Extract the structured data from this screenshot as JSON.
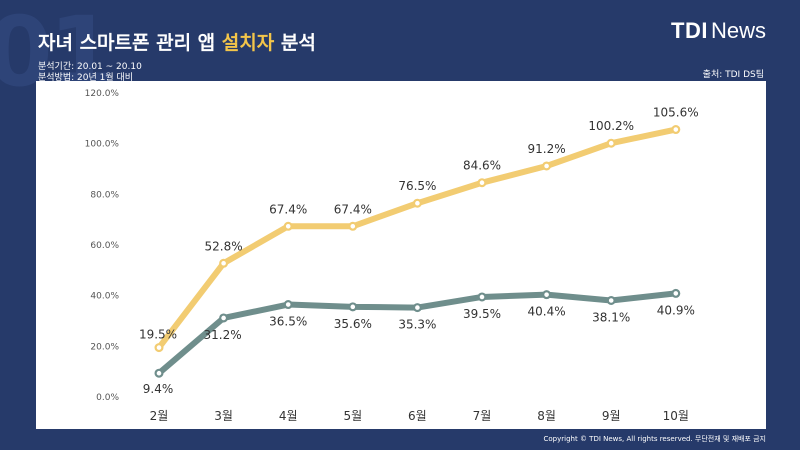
{
  "watermark": "01",
  "header": {
    "title_pre": "자녀 스마트폰 관리 앱 ",
    "title_highlight": "설치자",
    "title_post": " 분석",
    "period": "분석기간: 20.01 ~ 20.10",
    "method": "분석방법: 20년 1월 대비",
    "source": "출처: TDI DS팀"
  },
  "logo": {
    "tdi": "TDI",
    "news": "News"
  },
  "footer": {
    "copyright": "Copyright © TDI News, All rights reserved. 무단전재 및 재배포 금지"
  },
  "colors": {
    "background": "#263a6a",
    "highlight": "#f3c54a",
    "series_yellow": "#f2cc72",
    "series_teal": "#6f8e8c"
  },
  "chart_data": {
    "type": "line",
    "categories": [
      "2월",
      "3월",
      "4월",
      "5월",
      "6월",
      "7월",
      "8월",
      "9월",
      "10월"
    ],
    "series": [
      {
        "values": [
          19.5,
          52.8,
          67.4,
          67.4,
          76.5,
          84.6,
          91.2,
          100.2,
          105.6
        ],
        "labels": [
          "19.5%",
          "52.8%",
          "67.4%",
          "67.4%",
          "76.5%",
          "84.6%",
          "91.2%",
          "100.2%",
          "105.6%"
        ],
        "color": "#f2cc72"
      },
      {
        "values": [
          9.4,
          31.2,
          36.5,
          35.6,
          35.3,
          39.5,
          40.4,
          38.1,
          40.9
        ],
        "labels": [
          "9.4%",
          "31.2%",
          "36.5%",
          "35.6%",
          "35.3%",
          "39.5%",
          "40.4%",
          "38.1%",
          "40.9%"
        ],
        "color": "#6f8e8c"
      }
    ],
    "ylim": [
      0,
      120
    ],
    "yticks": [
      "0.0%",
      "20.0%",
      "40.0%",
      "60.0%",
      "80.0%",
      "100.0%",
      "120.0%"
    ],
    "grid": false,
    "legend": "none"
  }
}
